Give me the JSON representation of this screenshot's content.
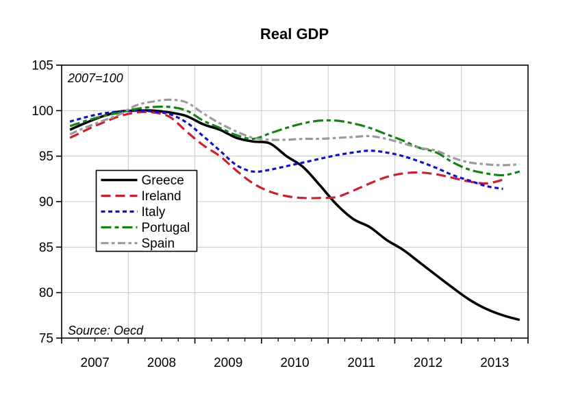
{
  "title": "Real GDP",
  "annotation": "2007=100",
  "source_note": "Source: Oecd",
  "colors": {
    "greece": "#000000",
    "ireland": "#cc1f2f",
    "italy": "#1111cd",
    "portugal": "#178117",
    "spain": "#9b9b9b",
    "grid": "#c8c8c8",
    "axis": "#000000",
    "background": "#ffffff",
    "legend_border": "#000000",
    "legend_background": "#ffffff"
  },
  "chart_data": {
    "type": "line",
    "title": "Real GDP",
    "annotation": "2007=100",
    "source": "Source: Oecd",
    "x_unit": "year, quarterly observations",
    "x_start": 2007.125,
    "x_step": 0.25,
    "xlim": [
      2007,
      2014
    ],
    "ylim": [
      75,
      105
    ],
    "y_ticks": [
      75,
      80,
      85,
      90,
      95,
      100,
      105
    ],
    "x_year_labels": [
      "2007",
      "2008",
      "2009",
      "2010",
      "2011",
      "2012",
      "2013"
    ],
    "grid": true,
    "legend_position": "middle-left",
    "legend_entries": [
      "Greece",
      "Ireland",
      "Italy",
      "Portugal",
      "Spain"
    ],
    "series": [
      {
        "name": "Greece",
        "color": "#000000",
        "line_style": "solid",
        "dash": "",
        "width": 3.6,
        "values": [
          97.9,
          98.7,
          99.4,
          99.9,
          100.0,
          100.0,
          99.8,
          99.4,
          98.5,
          97.9,
          97.0,
          96.6,
          96.4,
          95.0,
          93.8,
          91.8,
          89.7,
          88.1,
          87.2,
          85.8,
          84.7,
          83.3,
          81.9,
          80.5,
          79.2,
          78.2,
          77.5,
          77.0
        ]
      },
      {
        "name": "Ireland",
        "color": "#cc1f2f",
        "line_style": "long-dash",
        "dash": "14 7",
        "width": 3.2,
        "values": [
          97.0,
          97.9,
          98.7,
          99.4,
          99.8,
          99.8,
          99.3,
          97.7,
          96.2,
          95.0,
          93.4,
          92.0,
          91.1,
          90.6,
          90.4,
          90.4,
          90.5,
          91.2,
          92.0,
          92.7,
          93.1,
          93.2,
          93.0,
          92.6,
          92.2,
          92.0,
          92.4
        ]
      },
      {
        "name": "Italy",
        "color": "#1111cd",
        "line_style": "short-dash",
        "dash": "6 4.5",
        "width": 3.2,
        "values": [
          98.8,
          99.3,
          99.7,
          99.9,
          100.0,
          99.9,
          99.6,
          98.7,
          97.2,
          95.6,
          94.0,
          93.3,
          93.5,
          93.9,
          94.3,
          94.7,
          95.1,
          95.4,
          95.6,
          95.4,
          95.0,
          94.4,
          93.7,
          92.9,
          92.3,
          91.7,
          91.4
        ]
      },
      {
        "name": "Portugal",
        "color": "#178117",
        "line_style": "dash-dot",
        "dash": "15 5 6 5",
        "width": 3.2,
        "values": [
          98.3,
          98.9,
          99.4,
          99.8,
          100.2,
          100.4,
          100.4,
          100.0,
          98.9,
          98.1,
          97.3,
          96.9,
          97.5,
          98.1,
          98.6,
          98.9,
          98.9,
          98.6,
          98.1,
          97.4,
          96.7,
          95.9,
          95.4,
          94.3,
          93.5,
          93.1,
          92.9,
          93.3
        ]
      },
      {
        "name": "Spain",
        "color": "#9b9b9b",
        "line_style": "dash-dot",
        "dash": "11 4.5 4.5 4.5",
        "width": 3.2,
        "values": [
          97.4,
          98.2,
          98.9,
          99.6,
          100.6,
          101.0,
          101.2,
          100.9,
          99.7,
          98.6,
          97.7,
          97.0,
          96.8,
          96.8,
          96.9,
          96.9,
          97.0,
          97.1,
          97.2,
          96.9,
          96.4,
          95.9,
          95.6,
          94.8,
          94.3,
          94.1,
          94.0,
          94.1
        ]
      }
    ]
  }
}
